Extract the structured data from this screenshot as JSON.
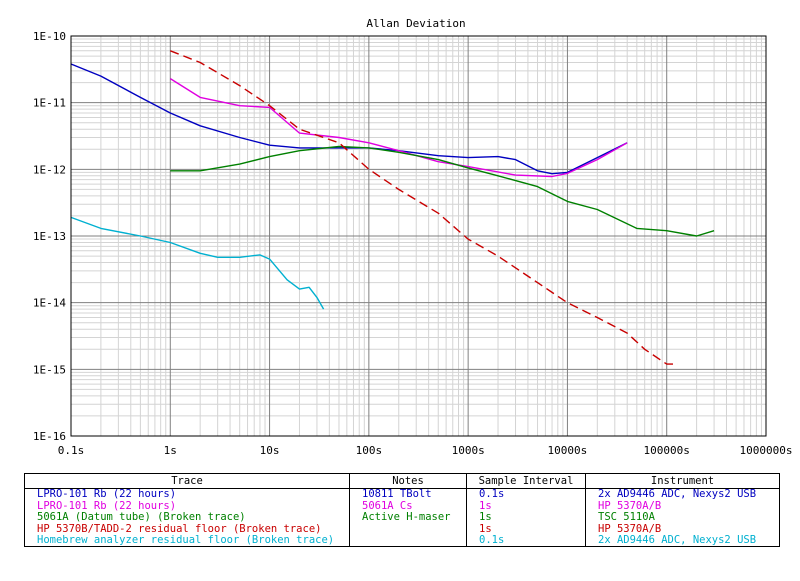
{
  "chart_data": {
    "type": "line",
    "title": "Allan Deviation",
    "x_scale": "log",
    "y_scale": "log",
    "xlim": [
      0.1,
      1000000
    ],
    "ylim": [
      1e-16,
      1e-10
    ],
    "x_ticks": [
      "0.1s",
      "1s",
      "10s",
      "100s",
      "1000s",
      "10000s",
      "100000s",
      "1000000s"
    ],
    "y_ticks": [
      "1E-10",
      "1E-11",
      "1E-12",
      "1E-13",
      "1E-14",
      "1E-15",
      "1E-16"
    ],
    "grid": true,
    "series": [
      {
        "name": "LPRO-101 Rb (22 hours)",
        "color": "#0000c0",
        "dash": "solid",
        "points": [
          [
            0.1,
            3.8e-11
          ],
          [
            0.2,
            2.5e-11
          ],
          [
            0.5,
            1.2e-11
          ],
          [
            1,
            7e-12
          ],
          [
            2,
            4.5e-12
          ],
          [
            5,
            3e-12
          ],
          [
            10,
            2.3e-12
          ],
          [
            20,
            2.1e-12
          ],
          [
            50,
            2.1e-12
          ],
          [
            100,
            2.1e-12
          ],
          [
            200,
            1.9e-12
          ],
          [
            500,
            1.6e-12
          ],
          [
            1000,
            1.5e-12
          ],
          [
            2000,
            1.55e-12
          ],
          [
            3000,
            1.4e-12
          ],
          [
            5000,
            9.5e-13
          ],
          [
            7000,
            8.6e-13
          ],
          [
            10000,
            9e-13
          ],
          [
            20000,
            1.5e-12
          ],
          [
            40000,
            2.5e-12
          ]
        ]
      },
      {
        "name": "LPRO-101 Rb (22 hours)",
        "color": "#e000e0",
        "dash": "solid",
        "points": [
          [
            1,
            2.3e-11
          ],
          [
            2,
            1.2e-11
          ],
          [
            5,
            9e-12
          ],
          [
            10,
            8.5e-12
          ],
          [
            20,
            3.5e-12
          ],
          [
            50,
            3e-12
          ],
          [
            100,
            2.5e-12
          ],
          [
            200,
            1.9e-12
          ],
          [
            500,
            1.3e-12
          ],
          [
            1000,
            1.1e-12
          ],
          [
            3000,
            8.2e-13
          ],
          [
            7000,
            7.8e-13
          ],
          [
            10000,
            8.7e-13
          ],
          [
            20000,
            1.4e-12
          ],
          [
            40000,
            2.5e-12
          ]
        ]
      },
      {
        "name": "5061A (Datum tube) (Broken trace)",
        "color": "#008000",
        "dash": "solid",
        "points": [
          [
            1,
            9.5e-13
          ],
          [
            2,
            9.5e-13
          ],
          [
            5,
            1.2e-12
          ],
          [
            10,
            1.55e-12
          ],
          [
            20,
            1.9e-12
          ],
          [
            50,
            2.2e-12
          ],
          [
            100,
            2.1e-12
          ],
          [
            200,
            1.8e-12
          ],
          [
            500,
            1.4e-12
          ],
          [
            1000,
            1.05e-12
          ],
          [
            2000,
            8e-13
          ],
          [
            5000,
            5.5e-13
          ],
          [
            10000,
            3.3e-13
          ],
          [
            20000,
            2.5e-13
          ],
          [
            50000,
            1.3e-13
          ],
          [
            100000,
            1.2e-13
          ],
          [
            200000,
            1e-13
          ],
          [
            300000,
            1.2e-13
          ]
        ]
      },
      {
        "name": "HP 5370B/TADD-2 residual floor (Broken trace)",
        "color": "#c80000",
        "dash": "dashed",
        "points": [
          [
            1,
            6e-11
          ],
          [
            2,
            4e-11
          ],
          [
            5,
            1.8e-11
          ],
          [
            10,
            9e-12
          ],
          [
            20,
            4e-12
          ],
          [
            50,
            2.5e-12
          ],
          [
            100,
            1e-12
          ],
          [
            200,
            5e-13
          ],
          [
            500,
            2.2e-13
          ],
          [
            1000,
            9e-14
          ],
          [
            2000,
            5e-14
          ],
          [
            5000,
            2e-14
          ],
          [
            10000,
            1e-14
          ],
          [
            20000,
            6e-15
          ],
          [
            40000,
            3.5e-15
          ],
          [
            60000,
            2e-15
          ],
          [
            100000,
            1.2e-15
          ],
          [
            130000,
            1.2e-15
          ]
        ]
      },
      {
        "name": "Homebrew analyzer residual floor (Broken trace)",
        "color": "#00b0d0",
        "dash": "solid",
        "points": [
          [
            0.1,
            1.9e-13
          ],
          [
            0.2,
            1.3e-13
          ],
          [
            0.5,
            1e-13
          ],
          [
            1,
            8e-14
          ],
          [
            2,
            5.5e-14
          ],
          [
            3,
            4.8e-14
          ],
          [
            5,
            4.8e-14
          ],
          [
            8,
            5.2e-14
          ],
          [
            10,
            4.5e-14
          ],
          [
            15,
            2.2e-14
          ],
          [
            20,
            1.6e-14
          ],
          [
            25,
            1.7e-14
          ],
          [
            30,
            1.2e-14
          ],
          [
            35,
            8e-15
          ]
        ]
      }
    ],
    "legend_table": {
      "headers": [
        "Trace",
        "Notes",
        "Sample Interval",
        "Instrument"
      ],
      "rows": [
        {
          "trace": "LPRO-101 Rb (22 hours)",
          "notes": "10811 TBolt",
          "interval": "0.1s",
          "instrument": "2x AD9446 ADC, Nexys2 USB",
          "color": "#0000c0"
        },
        {
          "trace": "LPRO-101 Rb (22 hours)",
          "notes": "5061A Cs",
          "interval": "1s",
          "instrument": "HP 5370A/B",
          "color": "#e000e0"
        },
        {
          "trace": "5061A (Datum tube) (Broken trace)",
          "notes": "Active H-maser",
          "interval": "1s",
          "instrument": "TSC 5110A",
          "color": "#008000"
        },
        {
          "trace": "HP 5370B/TADD-2 residual floor (Broken trace)",
          "notes": "",
          "interval": "1s",
          "instrument": "HP 5370A/B",
          "color": "#c80000"
        },
        {
          "trace": "Homebrew analyzer residual floor (Broken trace)",
          "notes": "",
          "interval": "0.1s",
          "instrument": "2x AD9446 ADC, Nexys2 USB",
          "color": "#00b0d0"
        }
      ]
    }
  }
}
